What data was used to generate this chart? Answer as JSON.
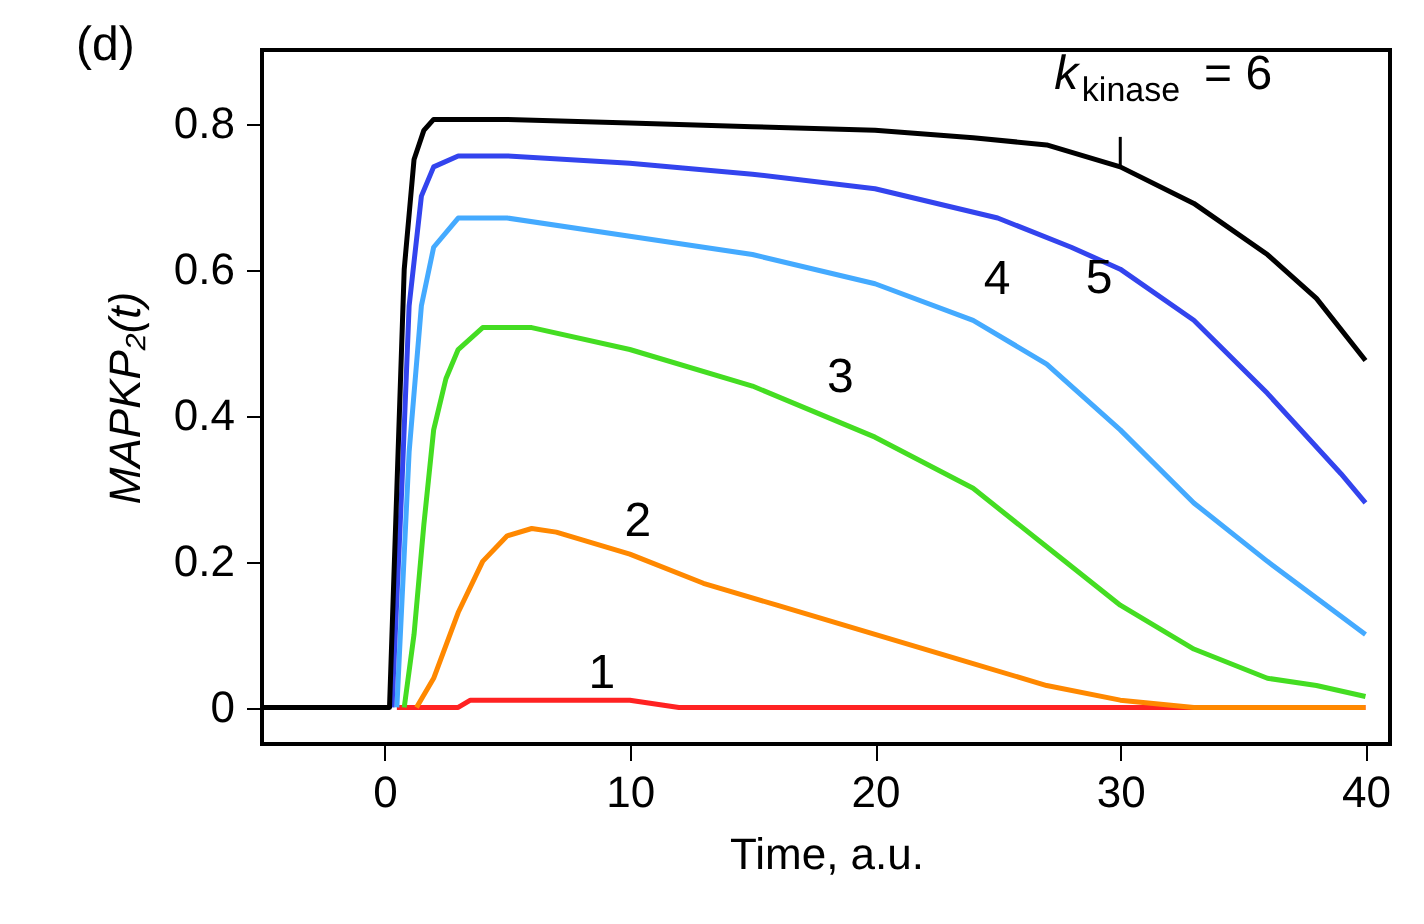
{
  "chart_data": {
    "type": "line",
    "title": "(d)",
    "xlabel": "Time, a.u.",
    "ylabel": "MAPKP₂(t)",
    "xlim": [
      -5,
      41
    ],
    "ylim": [
      -0.05,
      0.9
    ],
    "xticks": [
      0,
      10,
      20,
      30,
      40
    ],
    "yticks": [
      {
        "value": 0,
        "label": "0"
      },
      0.2,
      0.4,
      0.6,
      0.8
    ],
    "grid": false,
    "marker": "none",
    "line_style": "solid",
    "series": [
      {
        "name": "1",
        "color": "#ff2222",
        "x": [
          0.5,
          3,
          3.5,
          10,
          12,
          40
        ],
        "values": [
          0,
          0,
          0.01,
          0.01,
          0,
          0
        ]
      },
      {
        "name": "2",
        "color": "#ff8800",
        "x": [
          1.3,
          2,
          3,
          4,
          5,
          6,
          7,
          10,
          13,
          16,
          20,
          24,
          27,
          30,
          33,
          40
        ],
        "values": [
          0,
          0.04,
          0.13,
          0.2,
          0.235,
          0.245,
          0.24,
          0.21,
          0.17,
          0.14,
          0.1,
          0.06,
          0.03,
          0.01,
          0,
          0
        ]
      },
      {
        "name": "3",
        "color": "#44dd22",
        "x": [
          0.8,
          1.2,
          1.6,
          2,
          2.5,
          3,
          4,
          6,
          10,
          15,
          20,
          24,
          27,
          30,
          33,
          36,
          38,
          40
        ],
        "values": [
          0,
          0.1,
          0.25,
          0.38,
          0.45,
          0.49,
          0.52,
          0.52,
          0.49,
          0.44,
          0.37,
          0.3,
          0.22,
          0.14,
          0.08,
          0.04,
          0.03,
          0.015
        ]
      },
      {
        "name": "4",
        "color": "#44aaff",
        "x": [
          0.5,
          1,
          1.5,
          2,
          3,
          5,
          10,
          15,
          20,
          24,
          27,
          30,
          33,
          36,
          40
        ],
        "values": [
          0,
          0.35,
          0.55,
          0.63,
          0.67,
          0.67,
          0.645,
          0.62,
          0.58,
          0.53,
          0.47,
          0.38,
          0.28,
          0.2,
          0.1
        ]
      },
      {
        "name": "5",
        "color": "#3344ee",
        "x": [
          0.3,
          0.7,
          1,
          1.5,
          2,
          3,
          5,
          10,
          15,
          20,
          25,
          28,
          30,
          33,
          36,
          39,
          40
        ],
        "values": [
          0,
          0.3,
          0.55,
          0.7,
          0.74,
          0.755,
          0.755,
          0.745,
          0.73,
          0.71,
          0.67,
          0.63,
          0.6,
          0.53,
          0.43,
          0.32,
          0.28
        ]
      },
      {
        "name": "k$_{kinase}$ = 6",
        "color": "#000000",
        "x": [
          -5,
          0.2,
          0.5,
          0.8,
          1.2,
          1.6,
          2,
          5,
          10,
          15,
          20,
          24,
          27,
          30,
          33,
          36,
          38,
          40
        ],
        "values": [
          0,
          0,
          0.3,
          0.6,
          0.75,
          0.79,
          0.805,
          0.805,
          0.8,
          0.795,
          0.79,
          0.78,
          0.77,
          0.74,
          0.69,
          0.62,
          0.56,
          0.475
        ]
      }
    ]
  }
}
